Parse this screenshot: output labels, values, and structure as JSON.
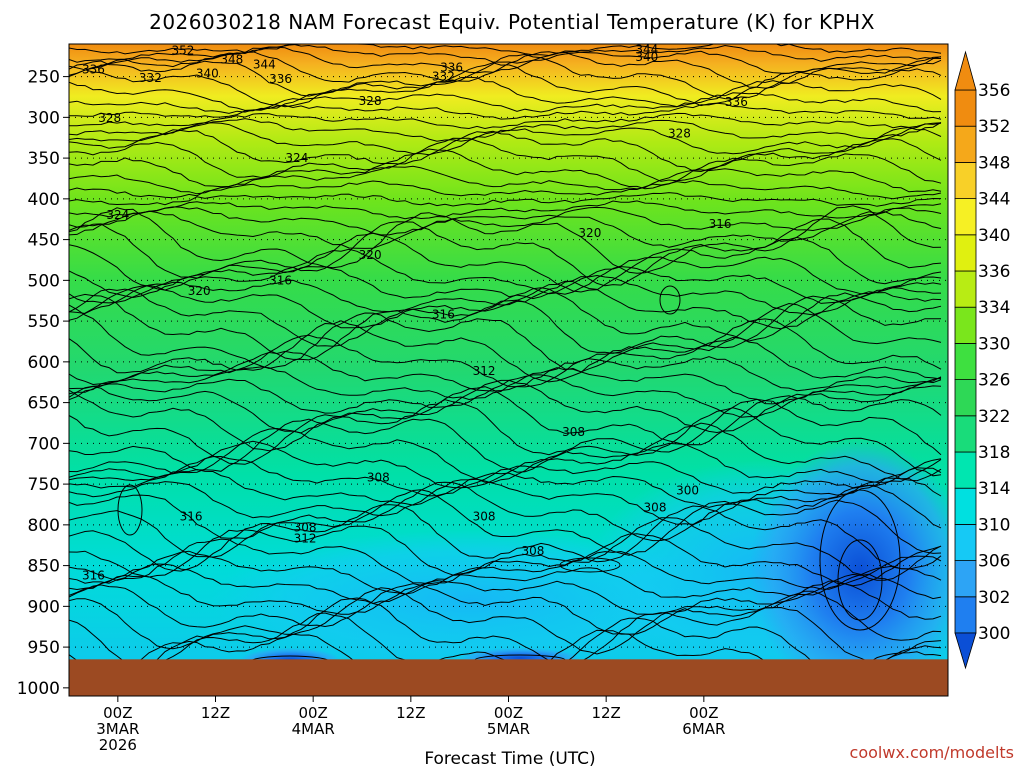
{
  "chart_data": {
    "type": "heatmap",
    "title": "2026030218 NAM Forecast Equiv. Potential Temperature (K) for KPHX",
    "xlabel": "Forecast Time (UTC)",
    "ylabel": "",
    "credit": "coolwx.com/modelts",
    "x_range_hours": [
      -6,
      102
    ],
    "y_levels": [
      250,
      300,
      350,
      400,
      450,
      500,
      550,
      600,
      650,
      700,
      750,
      800,
      850,
      900,
      950,
      1000
    ],
    "y_top_hpa": 210,
    "y_bottom_hpa": 1010,
    "surface_hpa": 965,
    "x_ticks": [
      {
        "hour": 0,
        "l1": "00Z",
        "l2": "3MAR",
        "l3": "2026"
      },
      {
        "hour": 12,
        "l1": "12Z",
        "l2": "",
        "l3": ""
      },
      {
        "hour": 24,
        "l1": "00Z",
        "l2": "4MAR",
        "l3": ""
      },
      {
        "hour": 36,
        "l1": "12Z",
        "l2": "",
        "l3": ""
      },
      {
        "hour": 48,
        "l1": "00Z",
        "l2": "5MAR",
        "l3": ""
      },
      {
        "hour": 60,
        "l1": "12Z",
        "l2": "",
        "l3": ""
      },
      {
        "hour": 72,
        "l1": "00Z",
        "l2": "6MAR",
        "l3": ""
      }
    ],
    "colorbar": {
      "levels": [
        300,
        302,
        306,
        310,
        314,
        318,
        322,
        326,
        330,
        334,
        336,
        340,
        344,
        348,
        352,
        356
      ],
      "colors": [
        "#0b4fd6",
        "#1f7ff0",
        "#2da4f5",
        "#16c9f5",
        "#00e0e0",
        "#00e6b0",
        "#19dc7a",
        "#2ed856",
        "#3ee040",
        "#7ae61c",
        "#b8ec14",
        "#e0f010",
        "#f6f024",
        "#f8d028",
        "#f5a81a",
        "#f08c10"
      ]
    },
    "surface_color": "#9c4a22",
    "contour_labels": [
      {
        "text": "352",
        "h": 8,
        "p": 218
      },
      {
        "text": "348",
        "h": 14,
        "p": 229
      },
      {
        "text": "344",
        "h": 18,
        "p": 235
      },
      {
        "text": "344",
        "h": 65,
        "p": 217
      },
      {
        "text": "340",
        "h": 65,
        "p": 226
      },
      {
        "text": "340",
        "h": 11,
        "p": 246
      },
      {
        "text": "336",
        "h": -3,
        "p": 241
      },
      {
        "text": "332",
        "h": 4,
        "p": 252
      },
      {
        "text": "336",
        "h": 20,
        "p": 253
      },
      {
        "text": "336",
        "h": 41,
        "p": 239
      },
      {
        "text": "332",
        "h": 40,
        "p": 250
      },
      {
        "text": "336",
        "h": 76,
        "p": 281
      },
      {
        "text": "328",
        "h": 31,
        "p": 280
      },
      {
        "text": "328",
        "h": 69,
        "p": 320
      },
      {
        "text": "328",
        "h": -1,
        "p": 301
      },
      {
        "text": "324",
        "h": 22,
        "p": 350
      },
      {
        "text": "324",
        "h": 0,
        "p": 420
      },
      {
        "text": "320",
        "h": 58,
        "p": 442
      },
      {
        "text": "316",
        "h": 74,
        "p": 431
      },
      {
        "text": "320",
        "h": 31,
        "p": 469
      },
      {
        "text": "316",
        "h": 20,
        "p": 500
      },
      {
        "text": "320",
        "h": 10,
        "p": 513
      },
      {
        "text": "316",
        "h": 40,
        "p": 542
      },
      {
        "text": "312",
        "h": 45,
        "p": 611
      },
      {
        "text": "308",
        "h": 56,
        "p": 686
      },
      {
        "text": "308",
        "h": 32,
        "p": 742
      },
      {
        "text": "308",
        "h": 45,
        "p": 790
      },
      {
        "text": "308",
        "h": 23,
        "p": 803
      },
      {
        "text": "312",
        "h": 23,
        "p": 817
      },
      {
        "text": "316",
        "h": 9,
        "p": 790
      },
      {
        "text": "316",
        "h": -3,
        "p": 862
      },
      {
        "text": "308",
        "h": 66,
        "p": 779
      },
      {
        "text": "308",
        "h": 51,
        "p": 832
      },
      {
        "text": "300",
        "h": 70,
        "p": 758
      }
    ]
  }
}
